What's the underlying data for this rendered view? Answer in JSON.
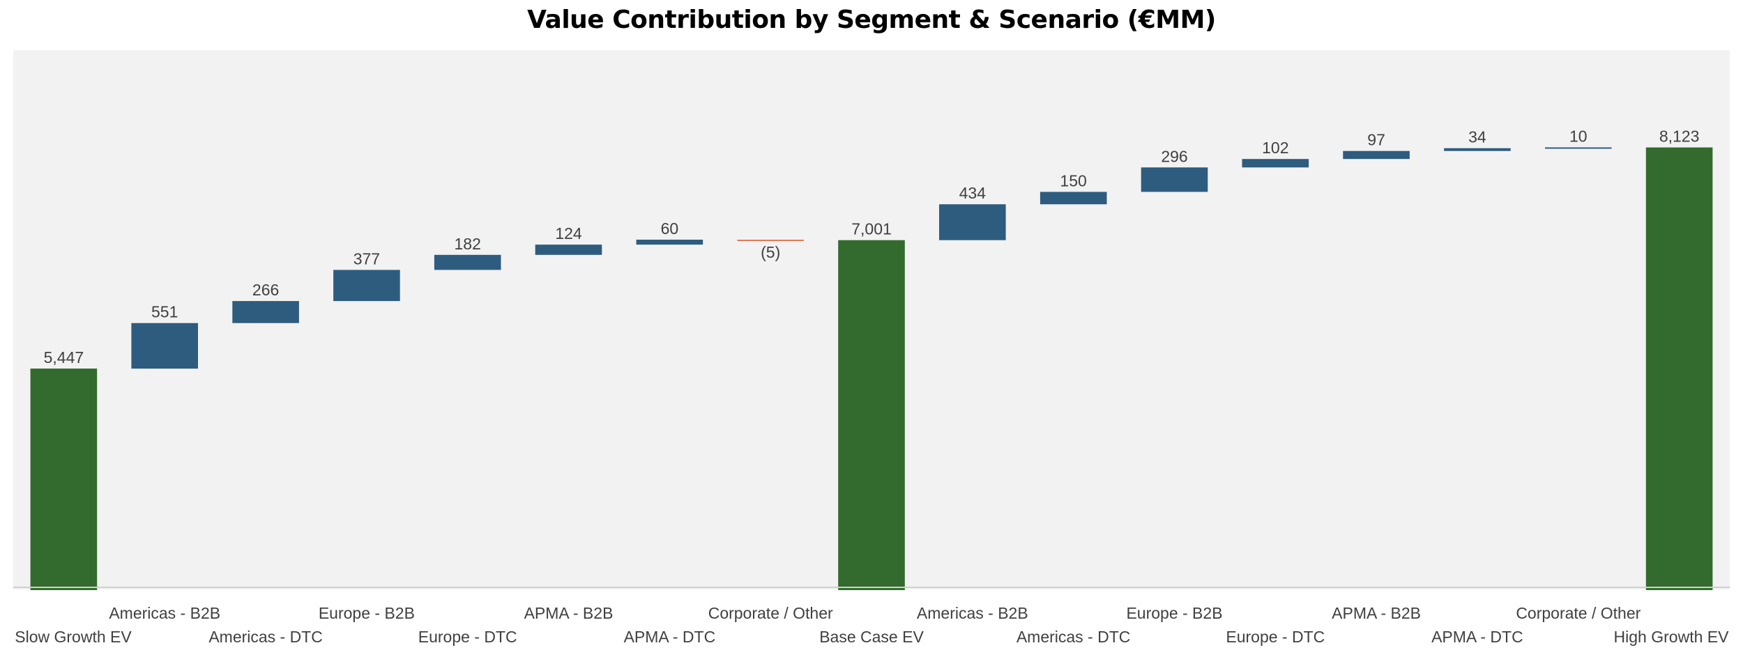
{
  "chart_data": {
    "type": "bar",
    "subtype": "waterfall",
    "title": "Value Contribution by Segment & Scenario (€MM)",
    "xlabel": "",
    "ylabel": "",
    "ylim": [
      2800,
      9300
    ],
    "grid": false,
    "legend": "none",
    "categories": [
      "Slow Growth EV",
      "Americas - B2B",
      "Americas - DTC",
      "Europe - B2B",
      "Europe - DTC",
      "APMA - B2B",
      "APMA - DTC",
      "Corporate / Other",
      "Base Case EV",
      "Americas - B2B",
      "Americas - DTC",
      "Europe - B2B",
      "Europe - DTC",
      "APMA - B2B",
      "APMA - DTC",
      "Corporate / Other",
      "High Growth EV"
    ],
    "values": [
      5447,
      551,
      266,
      377,
      182,
      124,
      60,
      -5,
      7001,
      434,
      150,
      296,
      102,
      97,
      34,
      10,
      8123
    ],
    "kinds": [
      "total",
      "delta",
      "delta",
      "delta",
      "delta",
      "delta",
      "delta",
      "delta",
      "total",
      "delta",
      "delta",
      "delta",
      "delta",
      "delta",
      "delta",
      "delta",
      "total"
    ],
    "data_labels": [
      "5,447",
      "551",
      "266",
      "377",
      "182",
      "124",
      "60",
      "(5)",
      "7,001",
      "434",
      "150",
      "296",
      "102",
      "97",
      "34",
      "10",
      "8,123"
    ],
    "colors": {
      "total": "#336b2e",
      "increase": "#2e5c7e",
      "decrease": "#e07b54"
    }
  }
}
